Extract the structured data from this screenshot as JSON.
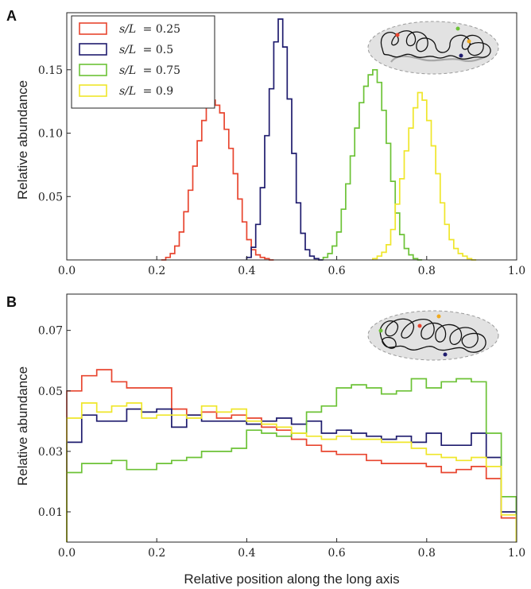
{
  "figure": {
    "xlabel": "Relative position along the long axis",
    "colors": {
      "s025": "#e8452f",
      "s05": "#1f1c6e",
      "s075": "#6cc236",
      "s09": "#efe62a"
    }
  },
  "chart_data": [
    {
      "type": "line",
      "panel": "A",
      "ylabel": "Relative abundance",
      "xlim": [
        0,
        1
      ],
      "ylim": [
        0,
        0.195
      ],
      "x_ticks": [
        "0.0",
        "0.2",
        "0.4",
        "0.6",
        "0.8",
        "1.0"
      ],
      "y_ticks": [
        "0.05",
        "0.10",
        "0.15"
      ],
      "legend_position": "top-left",
      "series": [
        {
          "name": "s/L = 0.25",
          "label_left": "s/L",
          "label_right": "= 0.25",
          "color": "#e8452f",
          "x_start": 0.21,
          "bin": 0.01,
          "values": [
            0,
            0.002,
            0.005,
            0.011,
            0.022,
            0.038,
            0.055,
            0.074,
            0.094,
            0.11,
            0.123,
            0.126,
            0.122,
            0.116,
            0.103,
            0.088,
            0.068,
            0.048,
            0.03,
            0.016,
            0.008,
            0.004,
            0.002,
            0.001,
            0
          ]
        },
        {
          "name": "s/L = 0.5",
          "label_left": "s/L",
          "label_right": "= 0.5",
          "color": "#1f1c6e",
          "x_start": 0.4,
          "bin": 0.01,
          "values": [
            0.002,
            0.01,
            0.028,
            0.057,
            0.098,
            0.135,
            0.172,
            0.19,
            0.168,
            0.127,
            0.084,
            0.045,
            0.021,
            0.008,
            0.003,
            0.001,
            0
          ]
        },
        {
          "name": "s/L = 0.75",
          "label_left": "s/L",
          "label_right": "= 0.75",
          "color": "#6cc236",
          "x_start": 0.57,
          "bin": 0.01,
          "values": [
            0.002,
            0.005,
            0.011,
            0.022,
            0.04,
            0.06,
            0.082,
            0.104,
            0.124,
            0.137,
            0.146,
            0.15,
            0.14,
            0.118,
            0.092,
            0.062,
            0.037,
            0.02,
            0.009,
            0.004,
            0.001,
            0
          ]
        },
        {
          "name": "s/L = 0.9",
          "label_left": "s/L",
          "label_right": "= 0.9",
          "color": "#efe62a",
          "x_start": 0.68,
          "bin": 0.01,
          "values": [
            0.001,
            0.003,
            0.006,
            0.012,
            0.024,
            0.044,
            0.064,
            0.086,
            0.104,
            0.12,
            0.132,
            0.126,
            0.11,
            0.09,
            0.068,
            0.045,
            0.028,
            0.016,
            0.009,
            0.005,
            0.003,
            0.001,
            0
          ]
        }
      ]
    },
    {
      "type": "line",
      "panel": "B",
      "ylabel": "Relative abundance",
      "xlim": [
        0,
        1
      ],
      "ylim": [
        0,
        0.082
      ],
      "x_ticks": [
        "0.0",
        "0.2",
        "0.4",
        "0.6",
        "0.8",
        "1.0"
      ],
      "y_ticks": [
        "0.01",
        "0.03",
        "0.05",
        "0.07"
      ],
      "series": [
        {
          "name": "s/L = 0.25",
          "color": "#e8452f",
          "x_start": 0,
          "bin": 0.0333,
          "values": [
            0.05,
            0.055,
            0.057,
            0.053,
            0.051,
            0.051,
            0.051,
            0.044,
            0.042,
            0.043,
            0.041,
            0.042,
            0.041,
            0.038,
            0.037,
            0.034,
            0.032,
            0.03,
            0.029,
            0.029,
            0.027,
            0.026,
            0.026,
            0.026,
            0.025,
            0.023,
            0.024,
            0.025,
            0.021,
            0.008
          ]
        },
        {
          "name": "s/L = 0.5",
          "color": "#1f1c6e",
          "x_start": 0,
          "bin": 0.0333,
          "values": [
            0.033,
            0.042,
            0.04,
            0.04,
            0.044,
            0.043,
            0.044,
            0.038,
            0.042,
            0.04,
            0.04,
            0.04,
            0.039,
            0.04,
            0.041,
            0.039,
            0.04,
            0.036,
            0.037,
            0.036,
            0.035,
            0.034,
            0.035,
            0.033,
            0.036,
            0.032,
            0.032,
            0.036,
            0.028,
            0.01
          ]
        },
        {
          "name": "s/L = 0.75",
          "color": "#6cc236",
          "x_start": 0,
          "bin": 0.0333,
          "values": [
            0.023,
            0.026,
            0.026,
            0.027,
            0.024,
            0.024,
            0.026,
            0.027,
            0.028,
            0.03,
            0.03,
            0.031,
            0.037,
            0.036,
            0.035,
            0.036,
            0.043,
            0.045,
            0.051,
            0.052,
            0.051,
            0.049,
            0.05,
            0.054,
            0.051,
            0.053,
            0.054,
            0.053,
            0.036,
            0.015
          ]
        },
        {
          "name": "s/L = 0.9",
          "color": "#efe62a",
          "x_start": 0,
          "bin": 0.0333,
          "values": [
            0.041,
            0.046,
            0.043,
            0.045,
            0.046,
            0.041,
            0.042,
            0.042,
            0.041,
            0.045,
            0.043,
            0.044,
            0.04,
            0.039,
            0.038,
            0.036,
            0.035,
            0.034,
            0.035,
            0.034,
            0.034,
            0.033,
            0.033,
            0.031,
            0.029,
            0.028,
            0.027,
            0.028,
            0.025,
            0.009
          ]
        }
      ]
    }
  ]
}
